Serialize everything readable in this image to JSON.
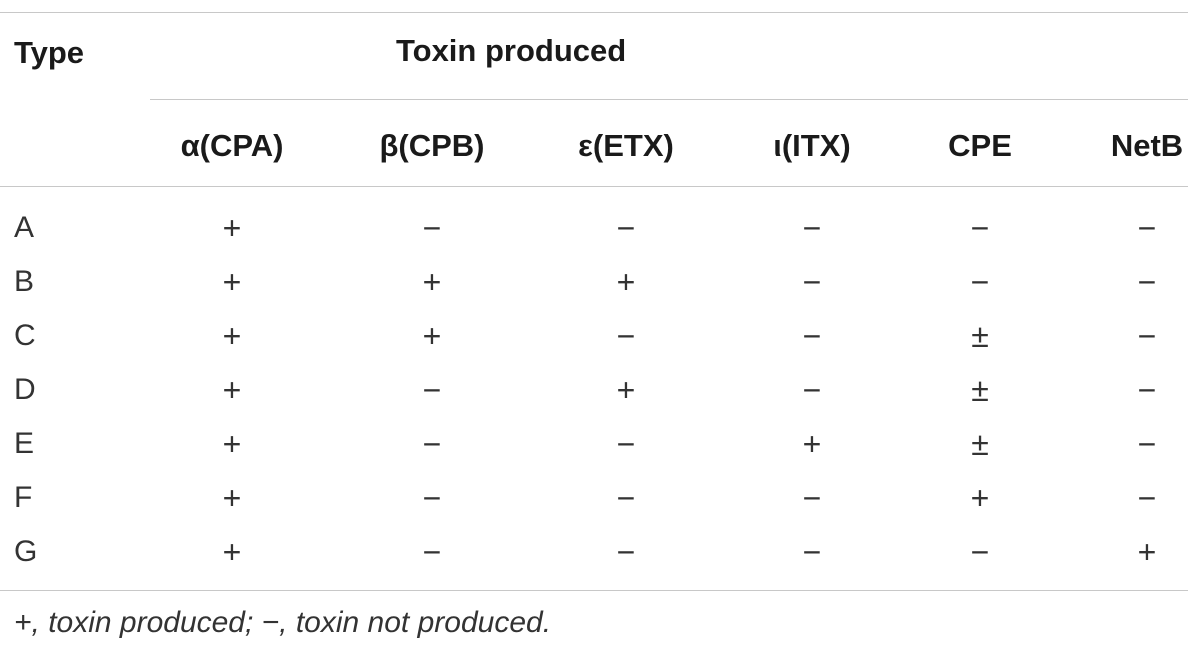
{
  "table": {
    "header": {
      "type_label": "Type",
      "group_label": "Toxin produced",
      "columns": [
        "α(CPA)",
        "β(CPB)",
        "ε(ETX)",
        "ι(ITX)",
        "CPE",
        "NetB"
      ]
    },
    "rows": [
      {
        "type": "A",
        "cells": [
          "+",
          "−",
          "−",
          "−",
          "−",
          "−"
        ]
      },
      {
        "type": "B",
        "cells": [
          "+",
          "+",
          "+",
          "−",
          "−",
          "−"
        ]
      },
      {
        "type": "C",
        "cells": [
          "+",
          "+",
          "−",
          "−",
          "±",
          "−"
        ]
      },
      {
        "type": "D",
        "cells": [
          "+",
          "−",
          "+",
          "−",
          "±",
          "−"
        ]
      },
      {
        "type": "E",
        "cells": [
          "+",
          "−",
          "−",
          "+",
          "±",
          "−"
        ]
      },
      {
        "type": "F",
        "cells": [
          "+",
          "−",
          "−",
          "−",
          "+",
          "−"
        ]
      },
      {
        "type": "G",
        "cells": [
          "+",
          "−",
          "−",
          "−",
          "−",
          "+"
        ]
      }
    ],
    "footnote": "+, toxin produced; −, toxin not produced."
  }
}
